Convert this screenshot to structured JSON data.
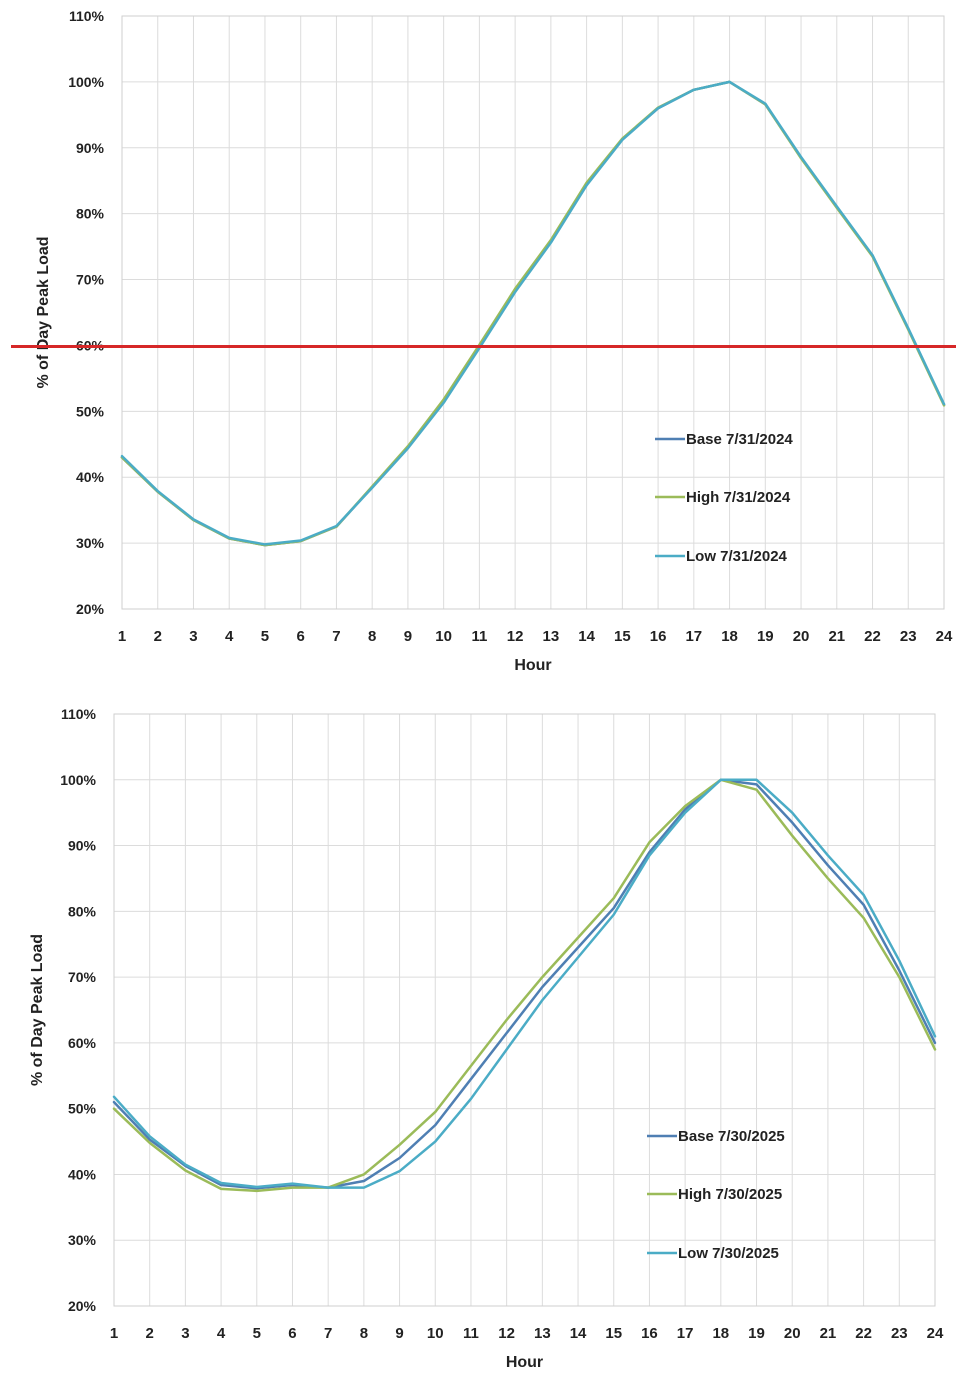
{
  "colors": {
    "base": "#4f7fb3",
    "high": "#9bbb59",
    "low": "#4bacc6",
    "reference_line": "#d62728"
  },
  "chart_data": [
    {
      "type": "line",
      "xlabel": "Hour",
      "ylabel": "% of Day Peak Load",
      "x": [
        1,
        2,
        3,
        4,
        5,
        6,
        7,
        8,
        9,
        10,
        11,
        12,
        13,
        14,
        15,
        16,
        17,
        18,
        19,
        20,
        21,
        22,
        23,
        24
      ],
      "xlim": [
        1,
        24
      ],
      "ylim": [
        20,
        110
      ],
      "yticks": [
        "20%",
        "30%",
        "40%",
        "50%",
        "60%",
        "70%",
        "80%",
        "90%",
        "100%",
        "110%"
      ],
      "grid": true,
      "legend_position": "lower-right",
      "reference_line": {
        "y": 60
      },
      "series": [
        {
          "name": "Base 7/31/2024",
          "color_key": "base",
          "values": [
            43,
            37.8,
            33.5,
            30.7,
            29.7,
            30.3,
            32.5,
            38.5,
            44.5,
            51.5,
            59.8,
            68.3,
            75.8,
            84.5,
            91.3,
            96,
            98.8,
            100,
            96.6,
            88.5,
            81,
            73.6,
            62.5,
            51
          ]
        },
        {
          "name": "High 7/31/2024",
          "color_key": "high",
          "values": [
            43,
            37.8,
            33.5,
            30.7,
            29.7,
            30.3,
            32.5,
            38.6,
            44.7,
            51.8,
            60.1,
            68.6,
            76,
            84.7,
            91.4,
            96.1,
            98.8,
            100,
            96.6,
            88.4,
            80.9,
            73.5,
            62.4,
            50.9
          ]
        },
        {
          "name": "Low 7/31/2024",
          "color_key": "low",
          "values": [
            43.2,
            37.9,
            33.6,
            30.8,
            29.8,
            30.4,
            32.6,
            38.4,
            44.4,
            51.3,
            59.6,
            68.1,
            75.6,
            84.3,
            91.2,
            96,
            98.8,
            100,
            96.7,
            88.6,
            81.1,
            73.7,
            62.6,
            51.1
          ]
        }
      ]
    },
    {
      "type": "line",
      "xlabel": "Hour",
      "ylabel": "% of Day Peak Load",
      "x": [
        1,
        2,
        3,
        4,
        5,
        6,
        7,
        8,
        9,
        10,
        11,
        12,
        13,
        14,
        15,
        16,
        17,
        18,
        19,
        20,
        21,
        22,
        23,
        24
      ],
      "xlim": [
        1,
        24
      ],
      "ylim": [
        20,
        110
      ],
      "yticks": [
        "20%",
        "30%",
        "40%",
        "50%",
        "60%",
        "70%",
        "80%",
        "90%",
        "100%",
        "110%"
      ],
      "grid": true,
      "legend_position": "lower-right",
      "series": [
        {
          "name": "Base 7/30/2025",
          "color_key": "base",
          "values": [
            51,
            45.3,
            41.3,
            38.4,
            37.9,
            38.4,
            38,
            39,
            42.5,
            47.5,
            54.5,
            61.5,
            68.5,
            74.5,
            80.5,
            89,
            95.5,
            100,
            99.3,
            93.5,
            87,
            81,
            71,
            60
          ]
        },
        {
          "name": "High 7/30/2025",
          "color_key": "high",
          "values": [
            50,
            44.8,
            40.6,
            37.8,
            37.5,
            38,
            38,
            40,
            44.5,
            49.5,
            56.5,
            63.5,
            70,
            76,
            82,
            90.5,
            96,
            100,
            98.5,
            91.5,
            85,
            79,
            70,
            59
          ]
        },
        {
          "name": "Low 7/30/2025",
          "color_key": "low",
          "values": [
            51.8,
            45.8,
            41.5,
            38.7,
            38.1,
            38.6,
            38,
            38,
            40.5,
            45,
            51.5,
            59,
            66.5,
            73,
            79.5,
            88.5,
            95,
            100,
            100,
            95,
            88.5,
            82.5,
            72.5,
            61
          ]
        }
      ]
    }
  ]
}
